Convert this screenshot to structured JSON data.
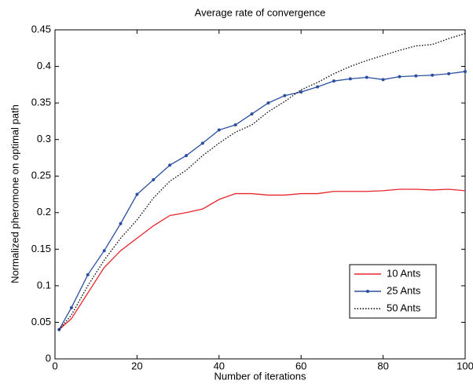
{
  "chart_data": {
    "type": "line",
    "title": "Average rate of convergence",
    "xlabel": "Number of iterations",
    "ylabel": "Normalized pheromone on optimal path",
    "x": [
      1,
      4,
      8,
      12,
      16,
      20,
      24,
      28,
      32,
      36,
      40,
      44,
      48,
      52,
      56,
      60,
      64,
      68,
      72,
      76,
      80,
      84,
      88,
      92,
      96,
      100
    ],
    "series": [
      {
        "name": "10 Ants",
        "color": "#e8242b",
        "style": "solid",
        "marker": false,
        "values": [
          0.04,
          0.055,
          0.09,
          0.125,
          0.148,
          0.165,
          0.182,
          0.196,
          0.2,
          0.205,
          0.218,
          0.226,
          0.226,
          0.224,
          0.224,
          0.226,
          0.226,
          0.229,
          0.229,
          0.229,
          0.23,
          0.232,
          0.232,
          0.231,
          0.232,
          0.23
        ]
      },
      {
        "name": "25 Ants",
        "color": "#2b4fa0",
        "style": "solid",
        "marker": true,
        "values": [
          0.04,
          0.07,
          0.115,
          0.148,
          0.185,
          0.225,
          0.245,
          0.265,
          0.278,
          0.295,
          0.313,
          0.32,
          0.335,
          0.35,
          0.36,
          0.365,
          0.372,
          0.38,
          0.383,
          0.385,
          0.382,
          0.386,
          0.387,
          0.388,
          0.39,
          0.393
        ]
      },
      {
        "name": "50 Ants",
        "color": "#000000",
        "style": "dotted",
        "marker": false,
        "values": [
          0.04,
          0.06,
          0.1,
          0.135,
          0.165,
          0.19,
          0.22,
          0.243,
          0.258,
          0.278,
          0.295,
          0.31,
          0.32,
          0.338,
          0.352,
          0.368,
          0.378,
          0.39,
          0.4,
          0.408,
          0.415,
          0.422,
          0.428,
          0.43,
          0.438,
          0.445
        ]
      }
    ],
    "xlim": [
      0,
      100
    ],
    "xticks": [
      0,
      20,
      40,
      60,
      80,
      100
    ],
    "ylim": [
      0,
      0.45
    ],
    "yticks": [
      0,
      0.05,
      0.1,
      0.15,
      0.2,
      0.25,
      0.3,
      0.35,
      0.4,
      0.45
    ],
    "grid": false,
    "legend": "lower-right"
  }
}
